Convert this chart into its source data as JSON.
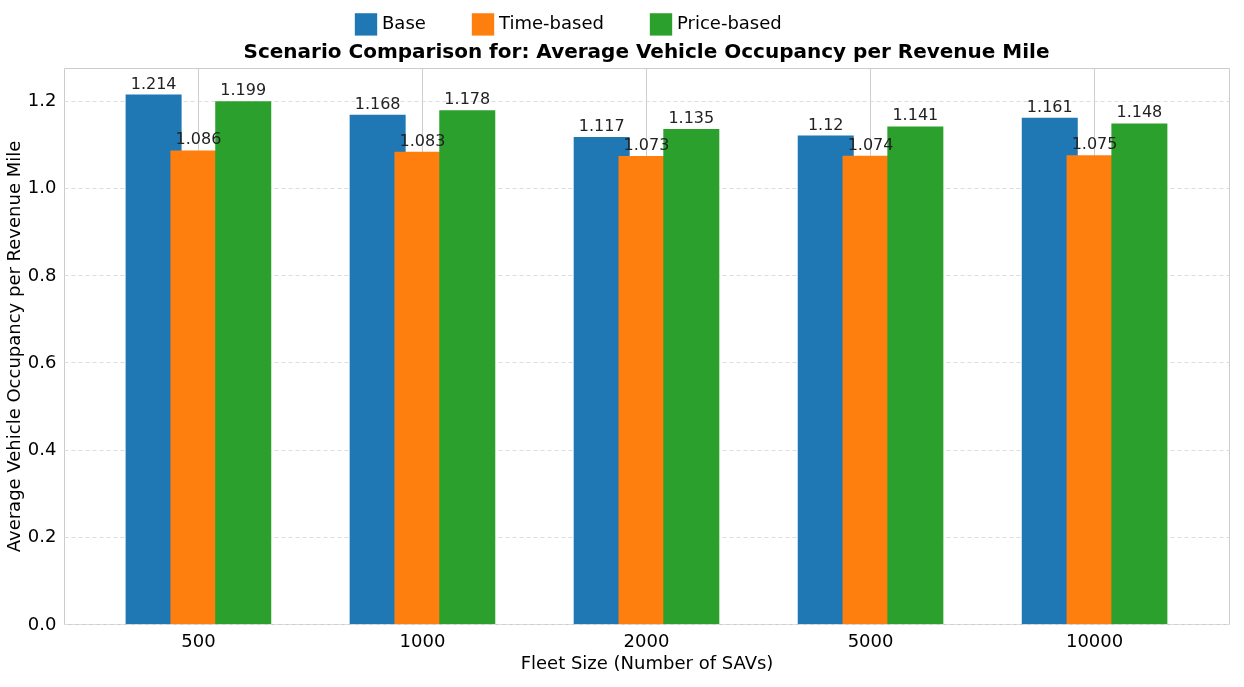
{
  "chart_data": {
    "type": "bar",
    "title": "Scenario Comparison for: Average Vehicle Occupancy per Revenue Mile",
    "xlabel": "Fleet Size (Number of SAVs)",
    "ylabel": "Average Vehicle Occupancy per Revenue Mile",
    "categories": [
      "500",
      "1000",
      "2000",
      "5000",
      "10000"
    ],
    "series": [
      {
        "name": "Base",
        "color": "#1f77b4",
        "values": [
          1.214,
          1.168,
          1.117,
          1.12,
          1.161
        ]
      },
      {
        "name": "Time-based",
        "color": "#ff7f0e",
        "values": [
          1.086,
          1.083,
          1.073,
          1.074,
          1.075
        ]
      },
      {
        "name": "Price-based",
        "color": "#2ca02c",
        "values": [
          1.199,
          1.178,
          1.135,
          1.141,
          1.148
        ]
      }
    ],
    "ylim": [
      0,
      1.275
    ],
    "yticks": [
      {
        "value": 0,
        "label": "0.0"
      },
      {
        "value": 0.2,
        "label": "0.2"
      },
      {
        "value": 0.4,
        "label": "0.4"
      },
      {
        "value": 0.6,
        "label": "0.6"
      },
      {
        "value": 0.8,
        "label": "0.8"
      },
      {
        "value": 1.0,
        "label": "1.0"
      },
      {
        "value": 1.2,
        "label": "1.2"
      }
    ],
    "grid": true,
    "legend": "top",
    "data_labels": true
  }
}
